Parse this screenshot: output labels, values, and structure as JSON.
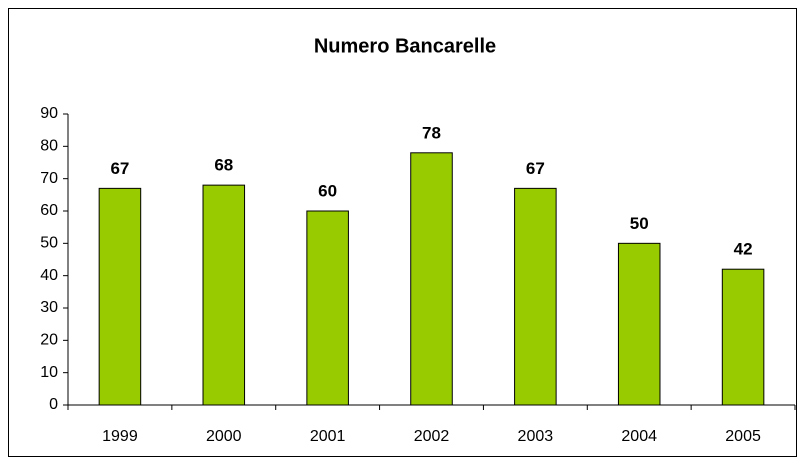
{
  "chart_data": {
    "type": "bar",
    "title": "Numero Bancarelle",
    "categories": [
      "1999",
      "2000",
      "2001",
      "2002",
      "2003",
      "2004",
      "2005"
    ],
    "values": [
      67,
      68,
      60,
      78,
      67,
      50,
      42
    ],
    "color": "#99cc00",
    "ylim": [
      0,
      90
    ],
    "yticks": [
      0,
      10,
      20,
      30,
      40,
      50,
      60,
      70,
      80,
      90
    ],
    "grid": false
  }
}
